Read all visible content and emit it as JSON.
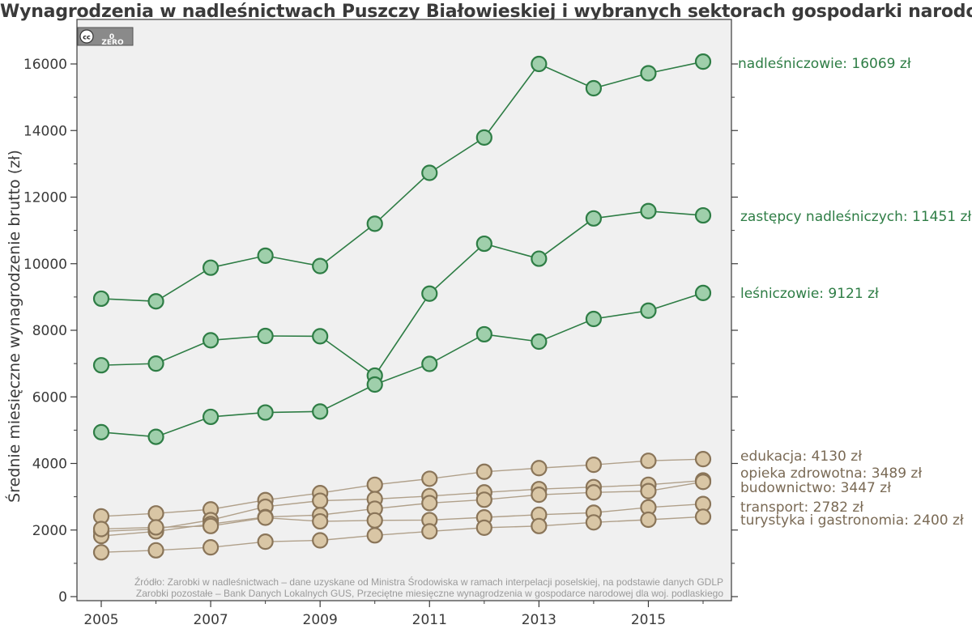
{
  "chart_data": {
    "type": "line",
    "title": "Wynagrodzenia w nadleśnictwach Puszczy Białowieskiej i wybranych sektorach gospodarki narodowej",
    "xlabel": "",
    "ylabel": "Średnie miesięczne wynagrodzenie brutto (zł)",
    "xlim": [
      2004.9,
      2016.5
    ],
    "ylim": [
      0,
      16500
    ],
    "x": [
      2005,
      2006,
      2007,
      2008,
      2009,
      2010,
      2011,
      2012,
      2013,
      2014,
      2015,
      2016
    ],
    "x_ticks": [
      2005,
      2007,
      2009,
      2011,
      2013,
      2015
    ],
    "x_tick_labels": [
      "2005",
      "2007",
      "2009",
      "2011",
      "2013",
      "2015"
    ],
    "y_ticks": [
      0,
      2000,
      4000,
      6000,
      8000,
      10000,
      12000,
      14000,
      16000
    ],
    "y_tick_labels": [
      "0",
      "2000",
      "4000",
      "6000",
      "8000",
      "10000",
      "12000",
      "14000",
      "16000"
    ],
    "grid": false,
    "series": [
      {
        "name": "nadleśniczowie",
        "label": "nadleśniczowie: 16069 zł",
        "group": "forestry",
        "values": [
          8950,
          8870,
          9880,
          10240,
          9930,
          11200,
          12730,
          13790,
          16000,
          15270,
          15720,
          16069
        ]
      },
      {
        "name": "zastępcy nadleśniczych",
        "label": "zastępcy nadleśniczych: 11451 zł",
        "group": "forestry",
        "values": [
          6950,
          7000,
          7700,
          7830,
          7820,
          6640,
          9100,
          10600,
          10150,
          11360,
          11580,
          11451
        ]
      },
      {
        "name": "leśniczowie",
        "label": "leśniczowie: 9121 zł",
        "group": "forestry",
        "values": [
          4940,
          4800,
          5400,
          5530,
          5560,
          6370,
          6990,
          7880,
          7660,
          8340,
          8590,
          9121
        ]
      },
      {
        "name": "edukacja",
        "label": "edukacja: 4130 zł",
        "group": "sector",
        "values": [
          2410,
          2500,
          2620,
          2900,
          3110,
          3360,
          3540,
          3750,
          3860,
          3960,
          4080,
          4130
        ]
      },
      {
        "name": "opieka zdrowotna",
        "label": "opieka zdrowotna: 3489 zł",
        "group": "sector",
        "values": [
          1960,
          2030,
          2300,
          2700,
          2880,
          2930,
          3020,
          3130,
          3230,
          3290,
          3360,
          3489
        ]
      },
      {
        "name": "budownictwo",
        "label": "budownictwo: 3447 zł",
        "group": "sector",
        "values": [
          1820,
          1960,
          2180,
          2390,
          2450,
          2640,
          2810,
          2910,
          3060,
          3130,
          3170,
          3447
        ]
      },
      {
        "name": "transport",
        "label": "transport: 2782 zł",
        "group": "sector",
        "values": [
          2030,
          2080,
          2120,
          2370,
          2260,
          2290,
          2300,
          2380,
          2460,
          2520,
          2680,
          2782
        ]
      },
      {
        "name": "turystyka i gastronomia",
        "label": "turystyka i gastronomia: 2400 zł",
        "group": "sector",
        "values": [
          1330,
          1390,
          1480,
          1650,
          1690,
          1840,
          1960,
          2070,
          2120,
          2230,
          2310,
          2400
        ]
      }
    ],
    "colors": {
      "forestry_line": "#2e7d45",
      "forestry_fill": "#9fcfab",
      "forestry_stroke": "#2e7d45",
      "forestry_text": "#2e7d45",
      "sector_line": "#b0a08a",
      "sector_fill": "#d9c6a5",
      "sector_stroke": "#8a7559",
      "sector_text": "#7a6a55",
      "plot_bg": "#f0f0f0"
    },
    "source_lines": [
      "Źródło: Zarobki w nadleśnictwach – dane uzyskane od Ministra Środowiska w ramach interpelacji poselskiej, na podstawie danych GDLP",
      "Zarobki pozostałe – Bank Danych Lokalnych GUS, Przeciętne miesięczne wynagrodzenia w gospodarce narodowej dla woj. podlaskiego"
    ]
  },
  "license_badge": {
    "left": "cc",
    "right": "0",
    "caption": "ZERO",
    "icon": "cc-zero-icon"
  }
}
